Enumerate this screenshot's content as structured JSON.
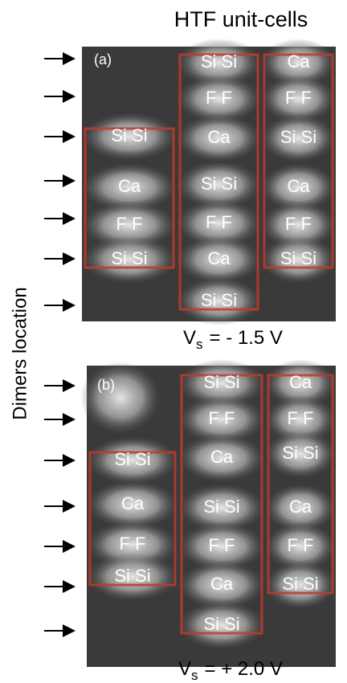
{
  "title": "HTF unit-cells",
  "y_label": "Dimers location",
  "panels": [
    {
      "label": "(a)",
      "caption": {
        "symbol": "V",
        "subscript": "s",
        "rest": "= - 1.5 V"
      },
      "columns": [
        [
          "Si Si",
          "Ca",
          "F F",
          "Si Si"
        ],
        [
          "Si Si",
          "F F",
          "Ca",
          "Si Si",
          "F F",
          "Ca",
          "Si Si"
        ],
        [
          "Ca",
          "F F",
          "Si Si",
          "Ca",
          "F F",
          "Si Si"
        ]
      ]
    },
    {
      "label": "(b)",
      "caption": {
        "symbol": "V",
        "subscript": "s",
        "rest": "= + 2.0 V"
      },
      "columns": [
        [
          "Si Si",
          "Ca",
          "F F",
          "Si Si"
        ],
        [
          "Si Si",
          "F F",
          "Ca",
          "Si Si",
          "F F",
          "Ca",
          "Si Si"
        ],
        [
          "Ca",
          "F F",
          "Si Si",
          "Ca",
          "F F",
          "Si Si"
        ]
      ]
    }
  ]
}
